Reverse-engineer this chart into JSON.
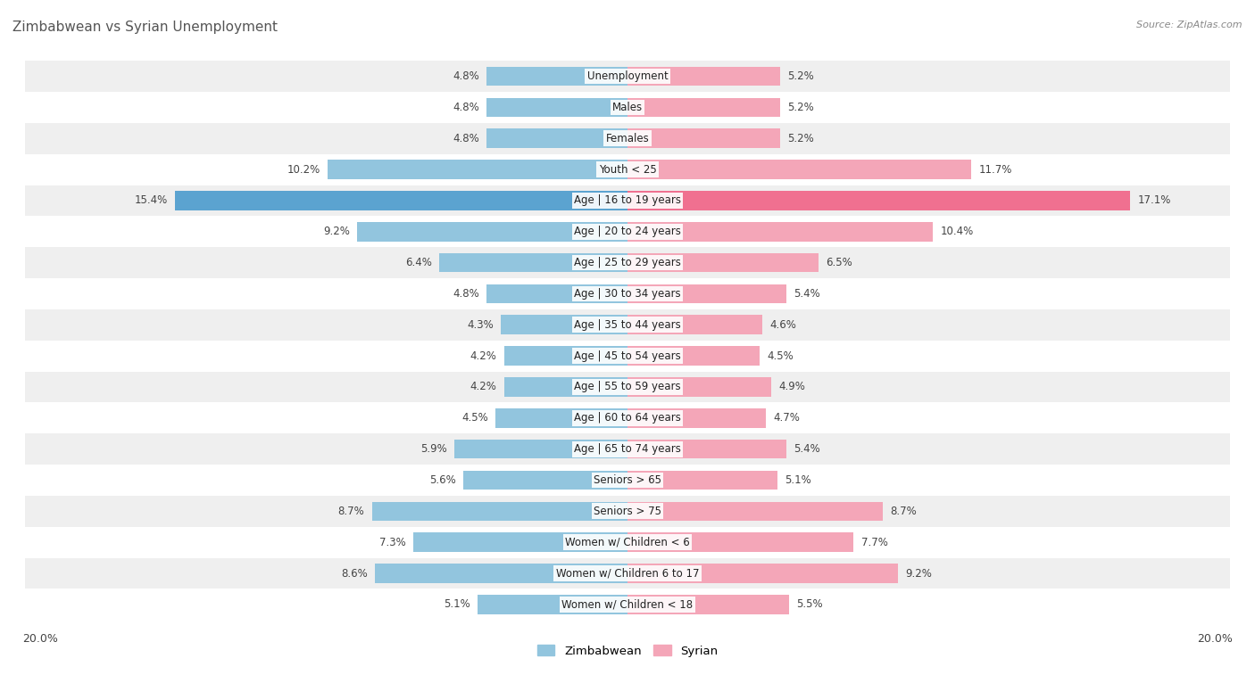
{
  "title": "Zimbabwean vs Syrian Unemployment",
  "source": "Source: ZipAtlas.com",
  "categories": [
    "Unemployment",
    "Males",
    "Females",
    "Youth < 25",
    "Age | 16 to 19 years",
    "Age | 20 to 24 years",
    "Age | 25 to 29 years",
    "Age | 30 to 34 years",
    "Age | 35 to 44 years",
    "Age | 45 to 54 years",
    "Age | 55 to 59 years",
    "Age | 60 to 64 years",
    "Age | 65 to 74 years",
    "Seniors > 65",
    "Seniors > 75",
    "Women w/ Children < 6",
    "Women w/ Children 6 to 17",
    "Women w/ Children < 18"
  ],
  "zimbabwean": [
    4.8,
    4.8,
    4.8,
    10.2,
    15.4,
    9.2,
    6.4,
    4.8,
    4.3,
    4.2,
    4.2,
    4.5,
    5.9,
    5.6,
    8.7,
    7.3,
    8.6,
    5.1
  ],
  "syrian": [
    5.2,
    5.2,
    5.2,
    11.7,
    17.1,
    10.4,
    6.5,
    5.4,
    4.6,
    4.5,
    4.9,
    4.7,
    5.4,
    5.1,
    8.7,
    7.7,
    9.2,
    5.5
  ],
  "zimbabwean_color": "#92c5de",
  "syrian_color": "#f4a6b8",
  "zimbabwean_highlight_color": "#5ba3d0",
  "syrian_highlight_color": "#f07090",
  "row_bg_light": "#efefef",
  "row_bg_white": "#ffffff",
  "max_val": 20.0,
  "label_fontsize": 8.5,
  "category_fontsize": 8.5,
  "title_fontsize": 11,
  "title_color": "#555555",
  "source_color": "#888888",
  "value_label_color": "#444444"
}
